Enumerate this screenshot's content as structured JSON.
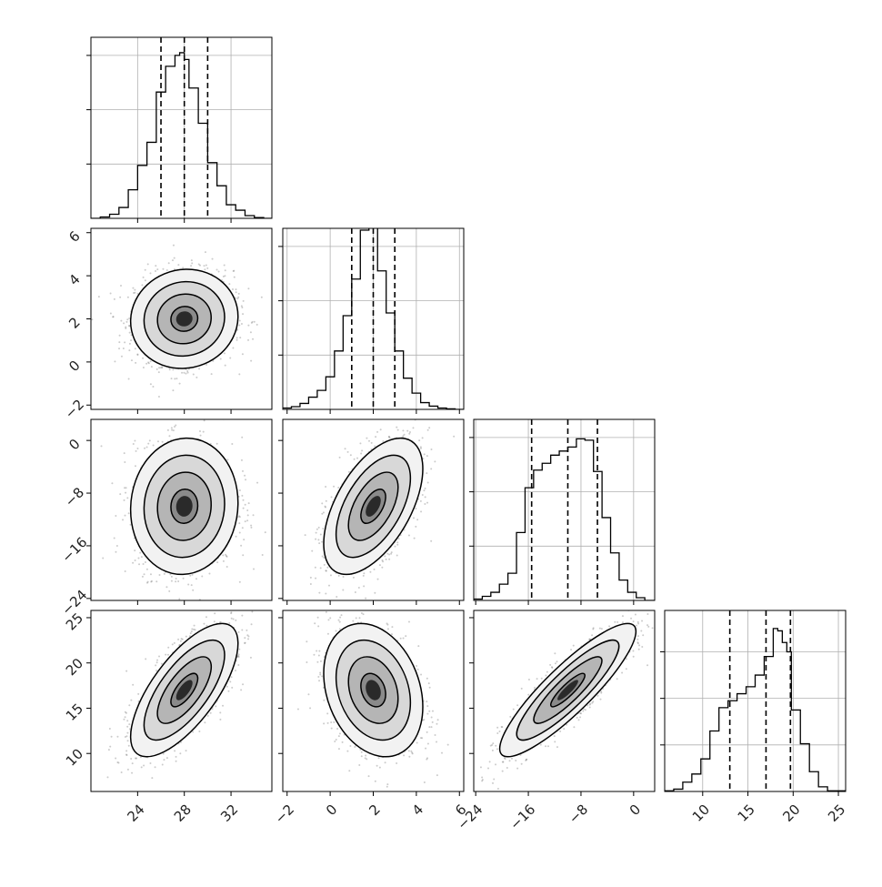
{
  "chart_data": {
    "type": "corner",
    "title": "",
    "parameters": [
      {
        "range": [
          20,
          35.5
        ],
        "ticks": [
          24,
          28,
          32
        ],
        "tick_labels": [
          "24",
          "28",
          "32"
        ],
        "quantiles": [
          26.0,
          28.0,
          30.0
        ]
      },
      {
        "range": [
          -2.2,
          6.2
        ],
        "ticks": [
          -2,
          0,
          2,
          4,
          6
        ],
        "tick_labels": [
          "−2",
          "0",
          "2",
          "4",
          "6"
        ],
        "quantiles": [
          1.0,
          2.0,
          3.0
        ]
      },
      {
        "range": [
          -24.3,
          3.2
        ],
        "ticks": [
          -24,
          -16,
          -8,
          0
        ],
        "tick_labels": [
          "−24",
          "−16",
          "−8",
          "0"
        ],
        "quantiles": [
          -15.5,
          -10.0,
          -5.5
        ]
      },
      {
        "range": [
          5.8,
          25.8
        ],
        "ticks": [
          10,
          15,
          20,
          25
        ],
        "tick_labels": [
          "10",
          "15",
          "20",
          "25"
        ],
        "quantiles": [
          13.0,
          17.0,
          19.7
        ]
      }
    ],
    "histograms": [
      {
        "param": 0,
        "max": 600,
        "grid_y": [
          200,
          400,
          600
        ],
        "bins_x": [
          20.0,
          20.8,
          21.6,
          22.4,
          23.2,
          24.0,
          24.8,
          25.6,
          26.4,
          27.2,
          27.6,
          28.0,
          28.4,
          29.2,
          30.0,
          30.8,
          31.6,
          32.4,
          33.2,
          34.0,
          34.8,
          35.5
        ],
        "counts": [
          0,
          5,
          15,
          40,
          105,
          195,
          280,
          465,
          560,
          600,
          610,
          585,
          480,
          350,
          205,
          120,
          50,
          30,
          10,
          3,
          0
        ]
      },
      {
        "param": 1,
        "max": 600,
        "grid_y": [
          200,
          400,
          600
        ],
        "bins_x": [
          -2.2,
          -1.8,
          -1.4,
          -1.0,
          -0.6,
          -0.2,
          0.2,
          0.6,
          1.0,
          1.4,
          1.8,
          2.2,
          2.6,
          3.0,
          3.4,
          3.8,
          4.2,
          4.6,
          5.0,
          5.4,
          5.8,
          6.2
        ],
        "counts": [
          5,
          10,
          22,
          45,
          70,
          120,
          215,
          345,
          480,
          660,
          670,
          510,
          355,
          215,
          115,
          60,
          25,
          12,
          5,
          2,
          0
        ]
      },
      {
        "param": 2,
        "max": 600,
        "grid_y": [
          200,
          400,
          600
        ],
        "bins_x": [
          -24.3,
          -23.0,
          -21.7,
          -20.4,
          -19.1,
          -17.8,
          -16.5,
          -15.2,
          -13.9,
          -12.6,
          -11.3,
          -10.0,
          -8.7,
          -7.4,
          -6.1,
          -4.8,
          -3.5,
          -2.2,
          -0.9,
          0.4,
          1.7,
          3.2
        ],
        "counts": [
          5,
          15,
          30,
          60,
          100,
          250,
          415,
          480,
          505,
          535,
          550,
          565,
          595,
          590,
          475,
          305,
          175,
          75,
          30,
          10,
          0
        ]
      },
      {
        "param": 3,
        "max": 700,
        "grid_y": [
          200,
          400,
          600
        ],
        "bins_x": [
          5.8,
          6.8,
          7.8,
          8.8,
          9.8,
          10.8,
          11.8,
          12.8,
          13.8,
          14.8,
          15.8,
          16.8,
          17.8,
          18.3,
          18.8,
          19.3,
          19.8,
          20.8,
          21.8,
          22.8,
          23.8,
          25.8
        ],
        "counts": [
          3,
          10,
          40,
          75,
          140,
          260,
          360,
          390,
          420,
          450,
          500,
          580,
          700,
          690,
          640,
          600,
          350,
          205,
          85,
          20,
          3
        ]
      }
    ],
    "pairs": [
      {
        "x": 0,
        "y": 1,
        "center": [
          28.0,
          2.0
        ],
        "sd": [
          2.0,
          1.0
        ],
        "rho": 0.05
      },
      {
        "x": 0,
        "y": 2,
        "center": [
          28.0,
          -10.0
        ],
        "sd": [
          2.0,
          4.5
        ],
        "rho": 0.05
      },
      {
        "x": 1,
        "y": 2,
        "center": [
          2.0,
          -10.0
        ],
        "sd": [
          1.0,
          4.5
        ],
        "rho": 0.55
      },
      {
        "x": 0,
        "y": 3,
        "center": [
          28.0,
          17.0
        ],
        "sd": [
          2.0,
          3.2
        ],
        "rho": 0.7
      },
      {
        "x": 1,
        "y": 3,
        "center": [
          2.0,
          17.0
        ],
        "sd": [
          1.0,
          3.2
        ],
        "rho": -0.25
      },
      {
        "x": 2,
        "y": 3,
        "center": [
          -10.0,
          17.0
        ],
        "sd": [
          4.5,
          3.2
        ],
        "rho": 0.88
      }
    ],
    "contour_levels_sigma": [
      0.5,
      1.0,
      1.5,
      2.0
    ],
    "grid": true
  }
}
